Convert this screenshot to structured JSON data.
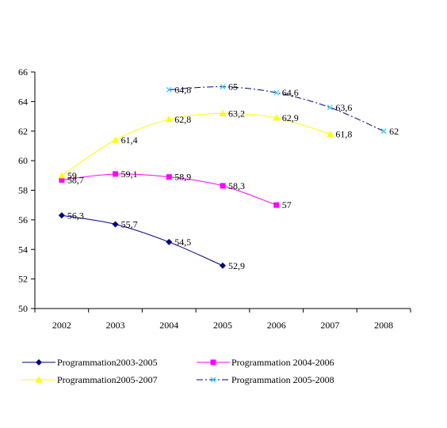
{
  "chart_data": {
    "type": "line",
    "categories": [
      "2002",
      "2003",
      "2004",
      "2005",
      "2006",
      "2007",
      "2008"
    ],
    "ylim": [
      50,
      66
    ],
    "y_ticks": [
      50,
      52,
      54,
      56,
      58,
      60,
      62,
      64,
      66
    ],
    "grid": false,
    "legend_position": "bottom",
    "series": [
      {
        "name": "Programmation2003-2005",
        "color": "#000080",
        "marker": "diamond",
        "dash": "solid",
        "values": [
          56.3,
          55.7,
          54.5,
          52.9,
          null,
          null,
          null
        ],
        "labels": [
          "56,3",
          "55,7",
          "54,5",
          "52,9",
          "",
          "",
          ""
        ]
      },
      {
        "name": "Programmation 2004-2006",
        "color": "#ff00ff",
        "marker": "square",
        "dash": "solid",
        "values": [
          58.7,
          59.1,
          58.9,
          58.3,
          57,
          null,
          null
        ],
        "labels": [
          "58,7",
          "59,1",
          "58,9",
          "58,3",
          "57",
          "",
          ""
        ]
      },
      {
        "name": "Programmation2005-2007",
        "color": "#ffff00",
        "marker": "triangle",
        "dash": "solid",
        "values": [
          59,
          61.4,
          62.8,
          63.2,
          62.9,
          61.8,
          null
        ],
        "labels": [
          "59",
          "61,4",
          "62,8",
          "63,2",
          "62,9",
          "61,8",
          ""
        ]
      },
      {
        "name": "Programmation 2005-2008",
        "color": "#000080",
        "marker_color": "#33ccff",
        "marker": "x",
        "dash": "dashdot",
        "values": [
          null,
          null,
          64.8,
          65,
          64.6,
          63.6,
          62
        ],
        "labels": [
          "",
          "",
          "64,8",
          "65",
          "64,6",
          "63,6",
          "62"
        ]
      }
    ]
  }
}
